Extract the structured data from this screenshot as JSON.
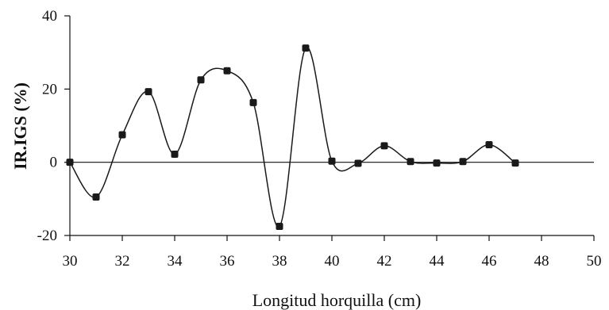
{
  "chart_data": {
    "type": "line",
    "title": "",
    "xlabel": "Longitud horquilla (cm)",
    "ylabel": "IR.IGS (%)",
    "xlim": [
      30,
      50
    ],
    "ylim": [
      -20,
      40
    ],
    "x_ticks": [
      "30",
      "32",
      "34",
      "36",
      "38",
      "40",
      "42",
      "44",
      "46",
      "48",
      "50"
    ],
    "y_ticks": [
      "-20",
      "0",
      "20",
      "40"
    ],
    "zero_line": true,
    "grid": false,
    "legend": "none",
    "line_color": "#1a1a1a",
    "marker_color": "#1a1a1a",
    "smoothed": true,
    "series": [
      {
        "x": [
          30,
          31,
          32,
          33,
          34,
          35,
          36,
          37,
          38,
          39,
          40,
          41,
          42,
          43,
          44,
          45,
          46,
          47
        ],
        "y": [
          0.0,
          -9.5,
          7.5,
          19.3,
          2.2,
          22.5,
          25.0,
          16.3,
          -17.5,
          31.2,
          0.3,
          -0.3,
          4.5,
          0.2,
          -0.2,
          0.2,
          4.8,
          -0.2
        ]
      }
    ]
  }
}
